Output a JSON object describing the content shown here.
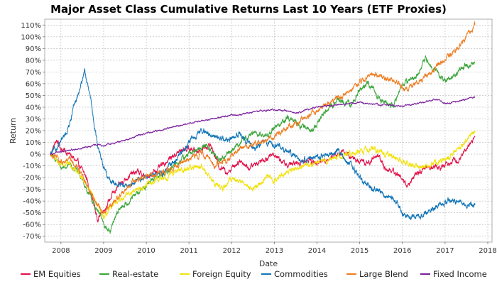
{
  "chart_data": {
    "type": "line",
    "title": "Major Asset Class Cumulative Returns Last 10 Years (ETF Proxies)",
    "xlabel": "Date",
    "ylabel": "Return",
    "x_ticks": [
      "2008",
      "2009",
      "2010",
      "2011",
      "2012",
      "2013",
      "2014",
      "2015",
      "2016",
      "2017",
      "2018"
    ],
    "xlim": [
      2007.62,
      2018.1
    ],
    "y_ticks": [
      "-70%",
      "-60%",
      "-50%",
      "-40%",
      "-30%",
      "-20%",
      "-10%",
      "0%",
      "10%",
      "20%",
      "30%",
      "40%",
      "50%",
      "60%",
      "70%",
      "80%",
      "90%",
      "100%",
      "110%"
    ],
    "ylim": [
      -75,
      115
    ],
    "grid": true,
    "legend_position": "bottom",
    "series": [
      {
        "name": "EM Equities",
        "color": "#e3114a",
        "x": [
          2007.75,
          2007.9,
          2008.0,
          2008.2,
          2008.4,
          2008.6,
          2008.75,
          2008.85,
          2009.0,
          2009.2,
          2009.4,
          2009.6,
          2009.8,
          2010.0,
          2010.3,
          2010.6,
          2010.9,
          2011.2,
          2011.5,
          2011.7,
          2011.9,
          2012.2,
          2012.4,
          2012.7,
          2013.0,
          2013.3,
          2013.5,
          2013.8,
          2014.0,
          2014.3,
          2014.6,
          2014.9,
          2015.2,
          2015.4,
          2015.6,
          2015.8,
          2016.0,
          2016.1,
          2016.3,
          2016.6,
          2016.9,
          2017.0,
          2017.3,
          2017.5,
          2017.7
        ],
        "values": [
          0,
          12,
          5,
          0,
          -8,
          -20,
          -40,
          -55,
          -48,
          -35,
          -25,
          -18,
          -15,
          -20,
          -12,
          -2,
          5,
          3,
          8,
          -10,
          -15,
          -5,
          -12,
          -5,
          0,
          -10,
          -8,
          -5,
          -8,
          -3,
          2,
          -5,
          -8,
          0,
          -12,
          -15,
          -20,
          -28,
          -18,
          -10,
          -12,
          -8,
          -5,
          5,
          15
        ]
      },
      {
        "name": "Real-estate",
        "color": "#3ca63c",
        "x": [
          2007.75,
          2007.9,
          2008.0,
          2008.2,
          2008.4,
          2008.6,
          2008.8,
          2009.0,
          2009.15,
          2009.3,
          2009.6,
          2009.9,
          2010.2,
          2010.5,
          2010.8,
          2011.1,
          2011.4,
          2011.7,
          2011.9,
          2012.2,
          2012.5,
          2012.8,
          2013.0,
          2013.3,
          2013.6,
          2013.9,
          2014.2,
          2014.5,
          2014.8,
          2015.0,
          2015.2,
          2015.5,
          2015.8,
          2016.0,
          2016.3,
          2016.55,
          2016.8,
          2017.0,
          2017.3,
          2017.5,
          2017.7
        ],
        "values": [
          0,
          -5,
          -12,
          -8,
          -15,
          -30,
          -45,
          -58,
          -68,
          -50,
          -40,
          -30,
          -20,
          -15,
          -5,
          2,
          8,
          -5,
          0,
          10,
          18,
          15,
          22,
          30,
          25,
          20,
          38,
          45,
          42,
          55,
          60,
          45,
          42,
          60,
          65,
          82,
          70,
          62,
          70,
          75,
          78
        ]
      },
      {
        "name": "Foreign Equity",
        "color": "#f2e20f",
        "x": [
          2007.75,
          2007.9,
          2008.0,
          2008.2,
          2008.4,
          2008.6,
          2008.8,
          2009.0,
          2009.2,
          2009.5,
          2009.8,
          2010.1,
          2010.4,
          2010.7,
          2011.0,
          2011.3,
          2011.6,
          2011.8,
          2012.0,
          2012.3,
          2012.5,
          2012.8,
          2013.0,
          2013.3,
          2013.6,
          2013.9,
          2014.2,
          2014.5,
          2014.8,
          2015.0,
          2015.3,
          2015.6,
          2015.9,
          2016.1,
          2016.4,
          2016.7,
          2017.0,
          2017.3,
          2017.5,
          2017.7
        ],
        "values": [
          0,
          -5,
          -10,
          -8,
          -15,
          -25,
          -40,
          -55,
          -45,
          -35,
          -30,
          -25,
          -20,
          -15,
          -12,
          -10,
          -25,
          -30,
          -20,
          -25,
          -30,
          -20,
          -22,
          -15,
          -10,
          -8,
          -5,
          -2,
          0,
          2,
          5,
          0,
          -5,
          -8,
          -12,
          -8,
          -5,
          5,
          12,
          20
        ]
      },
      {
        "name": "Commodities",
        "color": "#1175b8",
        "x": [
          2007.75,
          2007.9,
          2008.0,
          2008.15,
          2008.3,
          2008.45,
          2008.55,
          2008.7,
          2008.85,
          2009.0,
          2009.2,
          2009.5,
          2009.8,
          2010.1,
          2010.4,
          2010.7,
          2011.0,
          2011.3,
          2011.6,
          2011.9,
          2012.2,
          2012.5,
          2012.8,
          2013.0,
          2013.3,
          2013.6,
          2013.9,
          2014.2,
          2014.5,
          2014.8,
          2015.0,
          2015.3,
          2015.6,
          2015.9,
          2016.0,
          2016.2,
          2016.5,
          2016.8,
          2017.0,
          2017.3,
          2017.5,
          2017.7
        ],
        "values": [
          0,
          5,
          10,
          20,
          40,
          55,
          72,
          45,
          10,
          -12,
          -25,
          -28,
          -22,
          -18,
          -15,
          -5,
          10,
          20,
          15,
          12,
          18,
          5,
          10,
          8,
          3,
          -5,
          -3,
          -2,
          2,
          -10,
          -20,
          -30,
          -35,
          -42,
          -50,
          -55,
          -50,
          -45,
          -42,
          -40,
          -45,
          -42
        ]
      },
      {
        "name": "Large Blend",
        "color": "#ef7d22",
        "x": [
          2007.75,
          2007.9,
          2008.0,
          2008.2,
          2008.4,
          2008.6,
          2008.8,
          2009.0,
          2009.2,
          2009.5,
          2009.8,
          2010.1,
          2010.4,
          2010.7,
          2011.0,
          2011.3,
          2011.6,
          2011.9,
          2012.2,
          2012.5,
          2012.8,
          2013.0,
          2013.3,
          2013.6,
          2013.9,
          2014.2,
          2014.5,
          2014.8,
          2015.0,
          2015.3,
          2015.6,
          2015.9,
          2016.1,
          2016.4,
          2016.7,
          2017.0,
          2017.3,
          2017.5,
          2017.7
        ],
        "values": [
          0,
          -3,
          -8,
          -5,
          -12,
          -25,
          -40,
          -50,
          -42,
          -30,
          -22,
          -18,
          -15,
          -10,
          -5,
          2,
          -10,
          -5,
          5,
          8,
          12,
          15,
          22,
          28,
          35,
          42,
          48,
          55,
          62,
          68,
          65,
          60,
          55,
          62,
          70,
          82,
          90,
          100,
          110
        ]
      },
      {
        "name": "Fixed Income",
        "color": "#7a1f9e",
        "x": [
          2007.75,
          2008.0,
          2008.5,
          2008.85,
          2009.0,
          2009.5,
          2010.0,
          2010.5,
          2011.0,
          2011.5,
          2012.0,
          2012.5,
          2013.0,
          2013.3,
          2013.5,
          2014.0,
          2014.5,
          2015.0,
          2015.5,
          2016.0,
          2016.5,
          2016.8,
          2017.0,
          2017.3,
          2017.5,
          2017.7
        ],
        "values": [
          0,
          2,
          5,
          8,
          7,
          12,
          18,
          22,
          26,
          30,
          33,
          36,
          38,
          37,
          35,
          40,
          42,
          44,
          42,
          41,
          44,
          47,
          43,
          45,
          47,
          49
        ]
      }
    ]
  }
}
